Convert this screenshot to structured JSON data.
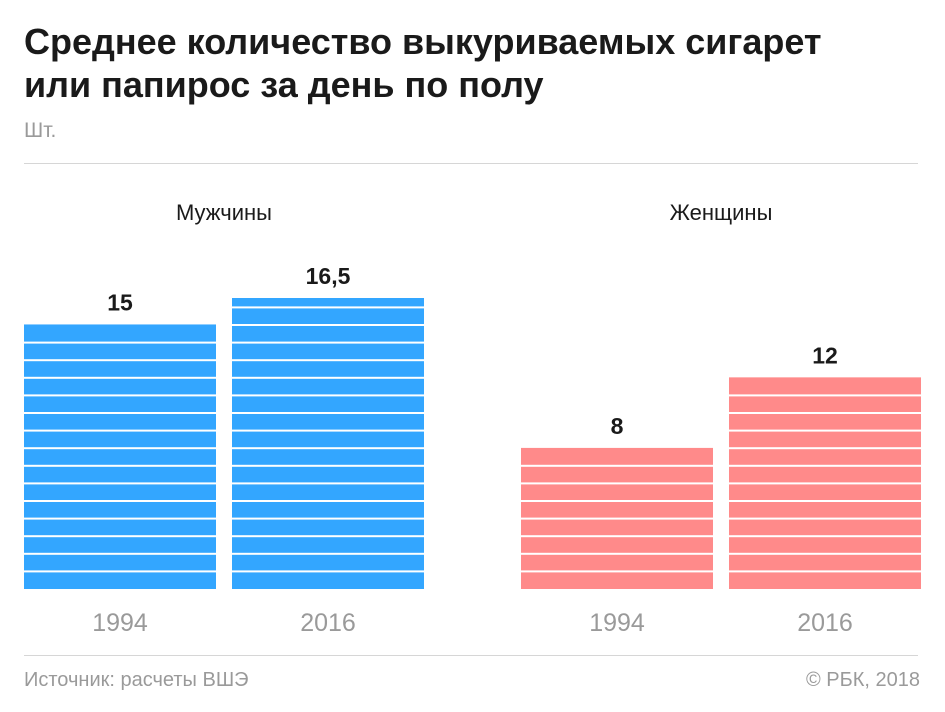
{
  "title_line1": "Среднее количество выкуриваемых сигарет",
  "title_line2": "или папирос за день по полу",
  "subtitle": "Шт.",
  "chart_data": {
    "type": "bar",
    "unit": "Шт.",
    "groups": [
      {
        "name": "Мужчины",
        "color": "#33a6ff",
        "bars": [
          {
            "category": "1994",
            "value": 15,
            "label": "15"
          },
          {
            "category": "2016",
            "value": 16.5,
            "label": "16,5"
          }
        ]
      },
      {
        "name": "Женщины",
        "color": "#ff8a8a",
        "bars": [
          {
            "category": "1994",
            "value": 8,
            "label": "8"
          },
          {
            "category": "2016",
            "value": 12,
            "label": "12"
          }
        ]
      }
    ],
    "ylim": [
      0,
      16.5
    ],
    "grid": false,
    "legend": "none"
  },
  "footer": {
    "source": "Источник: расчеты ВШЭ",
    "copyright": "© РБК, 2018"
  }
}
